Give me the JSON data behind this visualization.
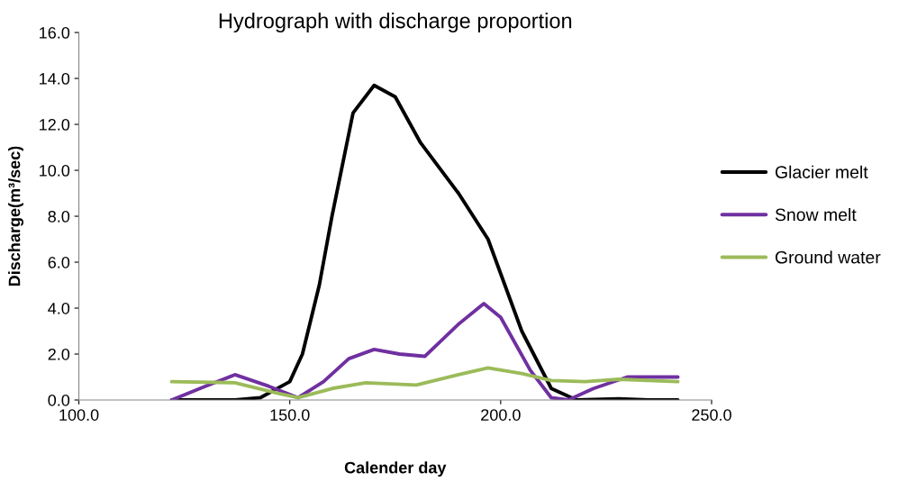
{
  "chart_data": {
    "type": "line",
    "title": "Hydrograph with discharge proportion",
    "xlabel": "Calender day",
    "ylabel": "Discharge(m³/sec)",
    "xlim": [
      100,
      250
    ],
    "xticks": [
      {
        "value": 100,
        "label": "100.0"
      },
      {
        "value": 150,
        "label": "150.0"
      },
      {
        "value": 200,
        "label": "200.0"
      },
      {
        "value": 250,
        "label": "250.0"
      }
    ],
    "ylim": [
      0,
      16
    ],
    "yticks": [
      {
        "value": 0,
        "label": "0.0"
      },
      {
        "value": 2,
        "label": "2.0"
      },
      {
        "value": 4,
        "label": "4.0"
      },
      {
        "value": 6,
        "label": "6.0"
      },
      {
        "value": 8,
        "label": "8.0"
      },
      {
        "value": 10,
        "label": "10.0"
      },
      {
        "value": 12,
        "label": "12.0"
      },
      {
        "value": 14,
        "label": "14.0"
      },
      {
        "value": 16,
        "label": "16.0"
      }
    ],
    "grid": false,
    "legend": "right",
    "marker": "none",
    "line_style": "solid",
    "series": [
      {
        "name": "Glacier melt",
        "color": "#000000",
        "x": [
          122,
          130,
          137,
          143,
          150,
          153,
          157,
          160,
          165,
          170,
          175,
          181,
          190,
          197,
          205,
          212,
          218,
          228,
          235,
          242
        ],
        "values": [
          0,
          0,
          0,
          0.1,
          0.8,
          2.0,
          5.0,
          8,
          12.5,
          13.7,
          13.2,
          11.2,
          9.0,
          7.0,
          3.0,
          0.5,
          0,
          0.05,
          0,
          0
        ]
      },
      {
        "name": "Snow melt",
        "color": "#7030a0",
        "x": [
          122,
          130,
          137,
          145,
          152,
          158,
          164,
          170,
          176,
          182,
          190,
          196,
          200,
          207,
          212,
          216,
          222,
          230,
          242
        ],
        "values": [
          0,
          0.6,
          1.1,
          0.6,
          0.1,
          0.8,
          1.8,
          2.2,
          2.0,
          1.9,
          3.3,
          4.2,
          3.6,
          1.3,
          0.1,
          0,
          0.5,
          1.0,
          1.0
        ]
      },
      {
        "name": "Ground water",
        "color": "#9bbb59",
        "x": [
          122,
          137,
          147,
          152,
          160,
          168,
          174,
          180,
          190,
          197,
          205,
          212,
          220,
          228,
          242
        ],
        "values": [
          0.8,
          0.75,
          0.3,
          0.1,
          0.5,
          0.75,
          0.7,
          0.65,
          1.1,
          1.4,
          1.15,
          0.85,
          0.8,
          0.9,
          0.8
        ]
      }
    ]
  }
}
